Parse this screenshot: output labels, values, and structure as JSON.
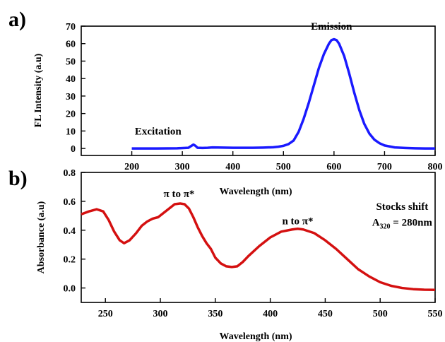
{
  "chart_data": [
    {
      "panel_label": "a)",
      "type": "line",
      "xlabel": "Wavelength (nm)",
      "ylabel": "FL Intensity (a.u)",
      "xlim": [
        100,
        800
      ],
      "ylim": [
        -4,
        70
      ],
      "xticks": [
        "200",
        "300",
        "400",
        "500",
        "600",
        "700",
        "800"
      ],
      "yticks": [
        "0",
        "10",
        "20",
        "30",
        "40",
        "50",
        "60",
        "70"
      ],
      "grid": false,
      "annotations": [
        {
          "text": "Excitation",
          "x": 252,
          "y": 8
        },
        {
          "text": "Emission",
          "x": 595,
          "y": 68
        }
      ],
      "series": [
        {
          "color": "#1a1aff",
          "x": [
            200,
            250,
            290,
            312,
            318,
            322,
            326,
            330,
            340,
            350,
            360,
            380,
            400,
            420,
            440,
            460,
            480,
            490,
            500,
            510,
            520,
            530,
            540,
            550,
            560,
            570,
            580,
            590,
            595,
            600,
            605,
            610,
            620,
            630,
            640,
            650,
            660,
            670,
            680,
            690,
            700,
            720,
            740,
            760,
            780,
            800
          ],
          "y": [
            0,
            0,
            0.1,
            0.4,
            1.5,
            2.2,
            1.5,
            0.4,
            0.3,
            0.4,
            0.6,
            0.5,
            0.4,
            0.4,
            0.4,
            0.5,
            0.7,
            1.0,
            1.5,
            2.5,
            4.5,
            9.5,
            17,
            26,
            36,
            46,
            54,
            60,
            62,
            62.5,
            62,
            60,
            53,
            43,
            32,
            22,
            14,
            8.5,
            5,
            3,
            1.7,
            0.6,
            0.3,
            0.1,
            0,
            0
          ]
        }
      ]
    },
    {
      "panel_label": "b)",
      "type": "line",
      "xlabel": "Wavelength (nm)",
      "ylabel": "Absorbance (a.u)",
      "xlim": [
        228,
        550
      ],
      "ylim": [
        -0.1,
        0.8
      ],
      "xticks": [
        "250",
        "300",
        "350",
        "400",
        "450",
        "500",
        "550"
      ],
      "yticks": [
        "0.0",
        "0.2",
        "0.4",
        "0.6",
        "0.8"
      ],
      "grid": false,
      "annotations": [
        {
          "text": "π to π*",
          "x": 317,
          "y": 0.63
        },
        {
          "text": "n to π*",
          "x": 425,
          "y": 0.44
        },
        {
          "text": "Stocks shift",
          "x": 520,
          "y": 0.54
        },
        {
          "text_main": "A",
          "text_sub": "320",
          "text_tail": " = 280nm",
          "x": 520,
          "y": 0.43
        }
      ],
      "series": [
        {
          "color": "#d41010",
          "x": [
            228,
            235,
            242,
            248,
            253,
            258,
            263,
            267,
            272,
            278,
            283,
            288,
            293,
            298,
            303,
            308,
            313,
            318,
            322,
            326,
            330,
            334,
            338,
            342,
            346,
            350,
            355,
            360,
            365,
            370,
            375,
            380,
            390,
            400,
            410,
            420,
            425,
            430,
            440,
            450,
            460,
            470,
            480,
            490,
            500,
            510,
            520,
            530,
            540,
            550
          ],
          "y": [
            0.51,
            0.53,
            0.545,
            0.53,
            0.47,
            0.39,
            0.33,
            0.31,
            0.33,
            0.38,
            0.43,
            0.46,
            0.48,
            0.49,
            0.52,
            0.55,
            0.58,
            0.585,
            0.58,
            0.55,
            0.49,
            0.42,
            0.36,
            0.31,
            0.27,
            0.21,
            0.17,
            0.15,
            0.145,
            0.15,
            0.18,
            0.22,
            0.29,
            0.35,
            0.39,
            0.405,
            0.41,
            0.405,
            0.38,
            0.33,
            0.27,
            0.2,
            0.13,
            0.08,
            0.04,
            0.015,
            0.0,
            -0.008,
            -0.012,
            -0.013
          ]
        }
      ]
    }
  ]
}
